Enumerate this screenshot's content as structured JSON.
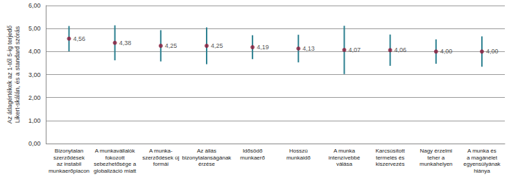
{
  "chart_data": {
    "type": "scatter",
    "y_label": "Az átlagértékek az 1-től 5-ig terjedő\nLikert-skálán, és a standard szórás",
    "categories": [
      "Bizonytalan\nszerződések\naz instabil\nmunkaerőpiacon",
      "A munkavállalók\nfokozott\nsebezhetősége a\nglobalizáció miatt",
      "A munka-\nszerződések új\nformái",
      "Az állás\nbizonytalanságának\nérzése",
      "Idősödő\nmunkaerő",
      "Hosszú\nmunkaidő",
      "A munka\nintenzívebbé\nválása",
      "Karcsúsított\ntermelés és\nkiszervezés",
      "Nagy érzelmi\nteher a\nmunkahelyen",
      "A munka és\na magánélet\negyensúlyának\nhiánya"
    ],
    "values": [
      4.56,
      4.38,
      4.25,
      4.25,
      4.19,
      4.13,
      4.07,
      4.06,
      4.0,
      4.0
    ],
    "value_labels": [
      "4,56",
      "4,38",
      "4,25",
      "4,25",
      "4,19",
      "4,13",
      "4,07",
      "4,06",
      "4,00",
      "4,00"
    ],
    "error": [
      0.55,
      0.76,
      0.68,
      0.8,
      0.52,
      0.6,
      1.05,
      0.68,
      0.53,
      0.66
    ],
    "color": "#8b1a3a",
    "marker": "circle",
    "data_labels": true,
    "ylim": [
      0,
      6
    ],
    "yticks": [
      {
        "value": 0,
        "label": "0,00"
      },
      {
        "value": 1,
        "label": "1,00"
      },
      {
        "value": 2,
        "label": "2,00"
      },
      {
        "value": 3,
        "label": "3,00"
      },
      {
        "value": 4,
        "label": "4,00"
      },
      {
        "value": 5,
        "label": "5,00"
      },
      {
        "value": 6,
        "label": "6,00"
      }
    ],
    "grid": true
  }
}
